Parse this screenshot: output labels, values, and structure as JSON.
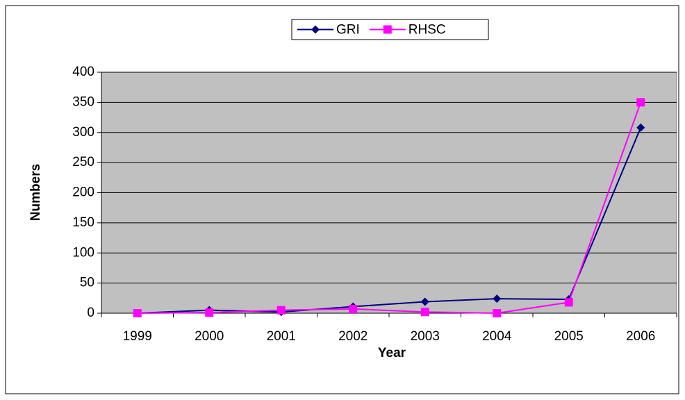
{
  "chart_data": {
    "type": "line",
    "x_label": "Year",
    "y_label": "Numbers",
    "categories": [
      "1999",
      "2000",
      "2001",
      "2002",
      "2003",
      "2004",
      "2005",
      "2006"
    ],
    "series": [
      {
        "name": "GRI",
        "color": "#000080",
        "marker": "diamond",
        "values": [
          0,
          5,
          2,
          11,
          19,
          24,
          23,
          308
        ]
      },
      {
        "name": "RHSC",
        "color": "#ff00ff",
        "marker": "square",
        "values": [
          0,
          1,
          5,
          7,
          2,
          0,
          18,
          350
        ]
      }
    ],
    "ylim": [
      0,
      400
    ],
    "yticks": [
      0,
      50,
      100,
      150,
      200,
      250,
      300,
      350,
      400
    ],
    "grid": true,
    "legend": "top"
  }
}
